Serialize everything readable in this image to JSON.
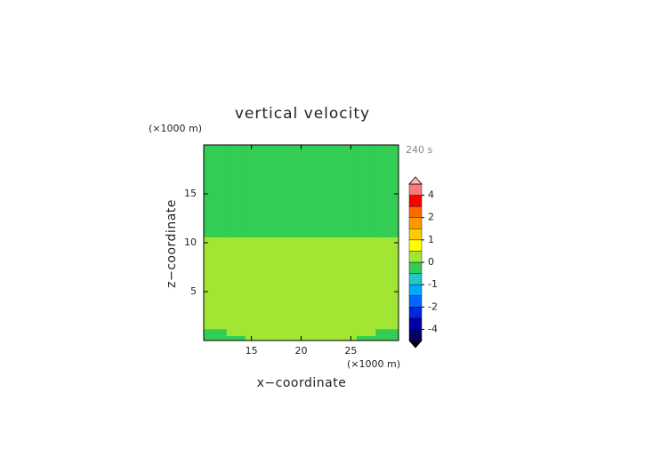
{
  "chart_data": {
    "type": "contour",
    "title": "vertical velocity",
    "x_label": "x−coordinate",
    "y_label": "z−coordinate",
    "x_unit": "(×1000 m)",
    "y_unit": "(×1000 m)",
    "time_label": "240 s",
    "xlim": [
      10.2,
      29.8
    ],
    "ylim": [
      0,
      20
    ],
    "xticks": [
      15,
      20,
      25
    ],
    "yticks": [
      5,
      10,
      15
    ],
    "x_edges": [
      10.2,
      12.5,
      14.4,
      25.6,
      27.5,
      29.8
    ],
    "y_edges": [
      0,
      0.5,
      1.2,
      10.6,
      20
    ],
    "values": [
      [
        -0.2,
        -0.2,
        0.2,
        -0.2,
        -0.2
      ],
      [
        -0.2,
        0.2,
        0.2,
        0.2,
        -0.2
      ],
      [
        0.2,
        0.2,
        0.2,
        0.2,
        0.2
      ],
      [
        -0.2,
        -0.2,
        -0.2,
        -0.2,
        -0.2
      ]
    ],
    "levels": [
      -5,
      -4,
      -3,
      -2,
      -1.5,
      -1,
      -0.5,
      0,
      0.5,
      1,
      1.5,
      2,
      3,
      4,
      5
    ],
    "colors": [
      "#000066",
      "#0000a8",
      "#0028d8",
      "#0066ff",
      "#00aaff",
      "#22c8c8",
      "#33cc55",
      "#a0e632",
      "#ffff00",
      "#ffcc00",
      "#ff9900",
      "#ff6600",
      "#ff0000",
      "#ff7777"
    ],
    "extend_min_color": "#000000",
    "extend_max_color": "#ffbbbb",
    "colorbar_ticks": [
      4,
      2,
      1,
      0,
      -1,
      -2,
      -4
    ]
  }
}
